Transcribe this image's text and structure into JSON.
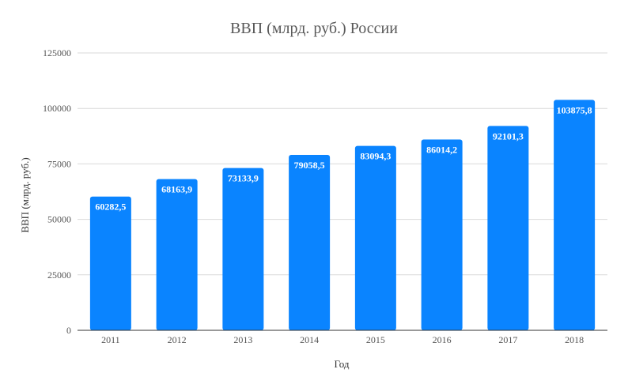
{
  "colors": {
    "bar": "#0A84FF",
    "grid": "#d9d9d9",
    "text": "#595959"
  },
  "chart_data": {
    "type": "bar",
    "title": "ВВП (млрд. руб.) России",
    "xlabel": "Год",
    "ylabel": "ВВП (млрд. руб.)",
    "categories": [
      "2011",
      "2012",
      "2013",
      "2014",
      "2015",
      "2016",
      "2017",
      "2018"
    ],
    "values": [
      60282.5,
      68163.9,
      73133.9,
      79058.5,
      83094.3,
      86014.2,
      92101.3,
      103875.8
    ],
    "value_labels": [
      "60282,5",
      "68163,9",
      "73133,9",
      "79058,5",
      "83094,3",
      "86014,2",
      "92101,3",
      "103875,8"
    ],
    "ylim": [
      0,
      125000
    ],
    "yticks": [
      0,
      25000,
      50000,
      75000,
      100000,
      125000
    ],
    "ytick_labels": [
      "0",
      "25000",
      "50000",
      "75000",
      "100000",
      "125000"
    ],
    "grid": true,
    "legend": "none"
  }
}
